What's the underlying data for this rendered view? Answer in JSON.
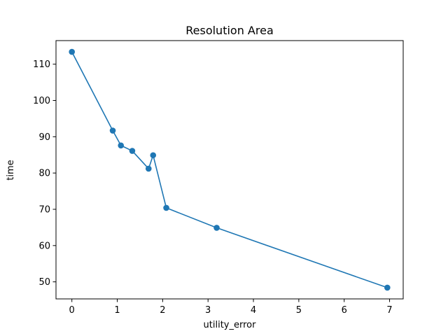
{
  "chart_data": {
    "type": "line",
    "title": "Resolution Area",
    "xlabel": "utility_error",
    "ylabel": "time",
    "xlim": [
      -0.35,
      7.3
    ],
    "ylim": [
      45.3,
      116.5
    ],
    "xticks": [
      0,
      1,
      2,
      3,
      4,
      5,
      6,
      7
    ],
    "yticks": [
      50,
      60,
      70,
      80,
      90,
      100,
      110
    ],
    "grid": false,
    "legend": "none",
    "series": [
      {
        "color": "#1f77b4",
        "marker": "circle",
        "x": [
          0,
          0.9,
          1.08,
          1.33,
          1.69,
          1.79,
          2.08,
          3.19,
          6.95
        ],
        "y": [
          113.4,
          91.7,
          87.6,
          86.1,
          81.2,
          84.9,
          70.4,
          64.9,
          48.4
        ]
      }
    ]
  }
}
